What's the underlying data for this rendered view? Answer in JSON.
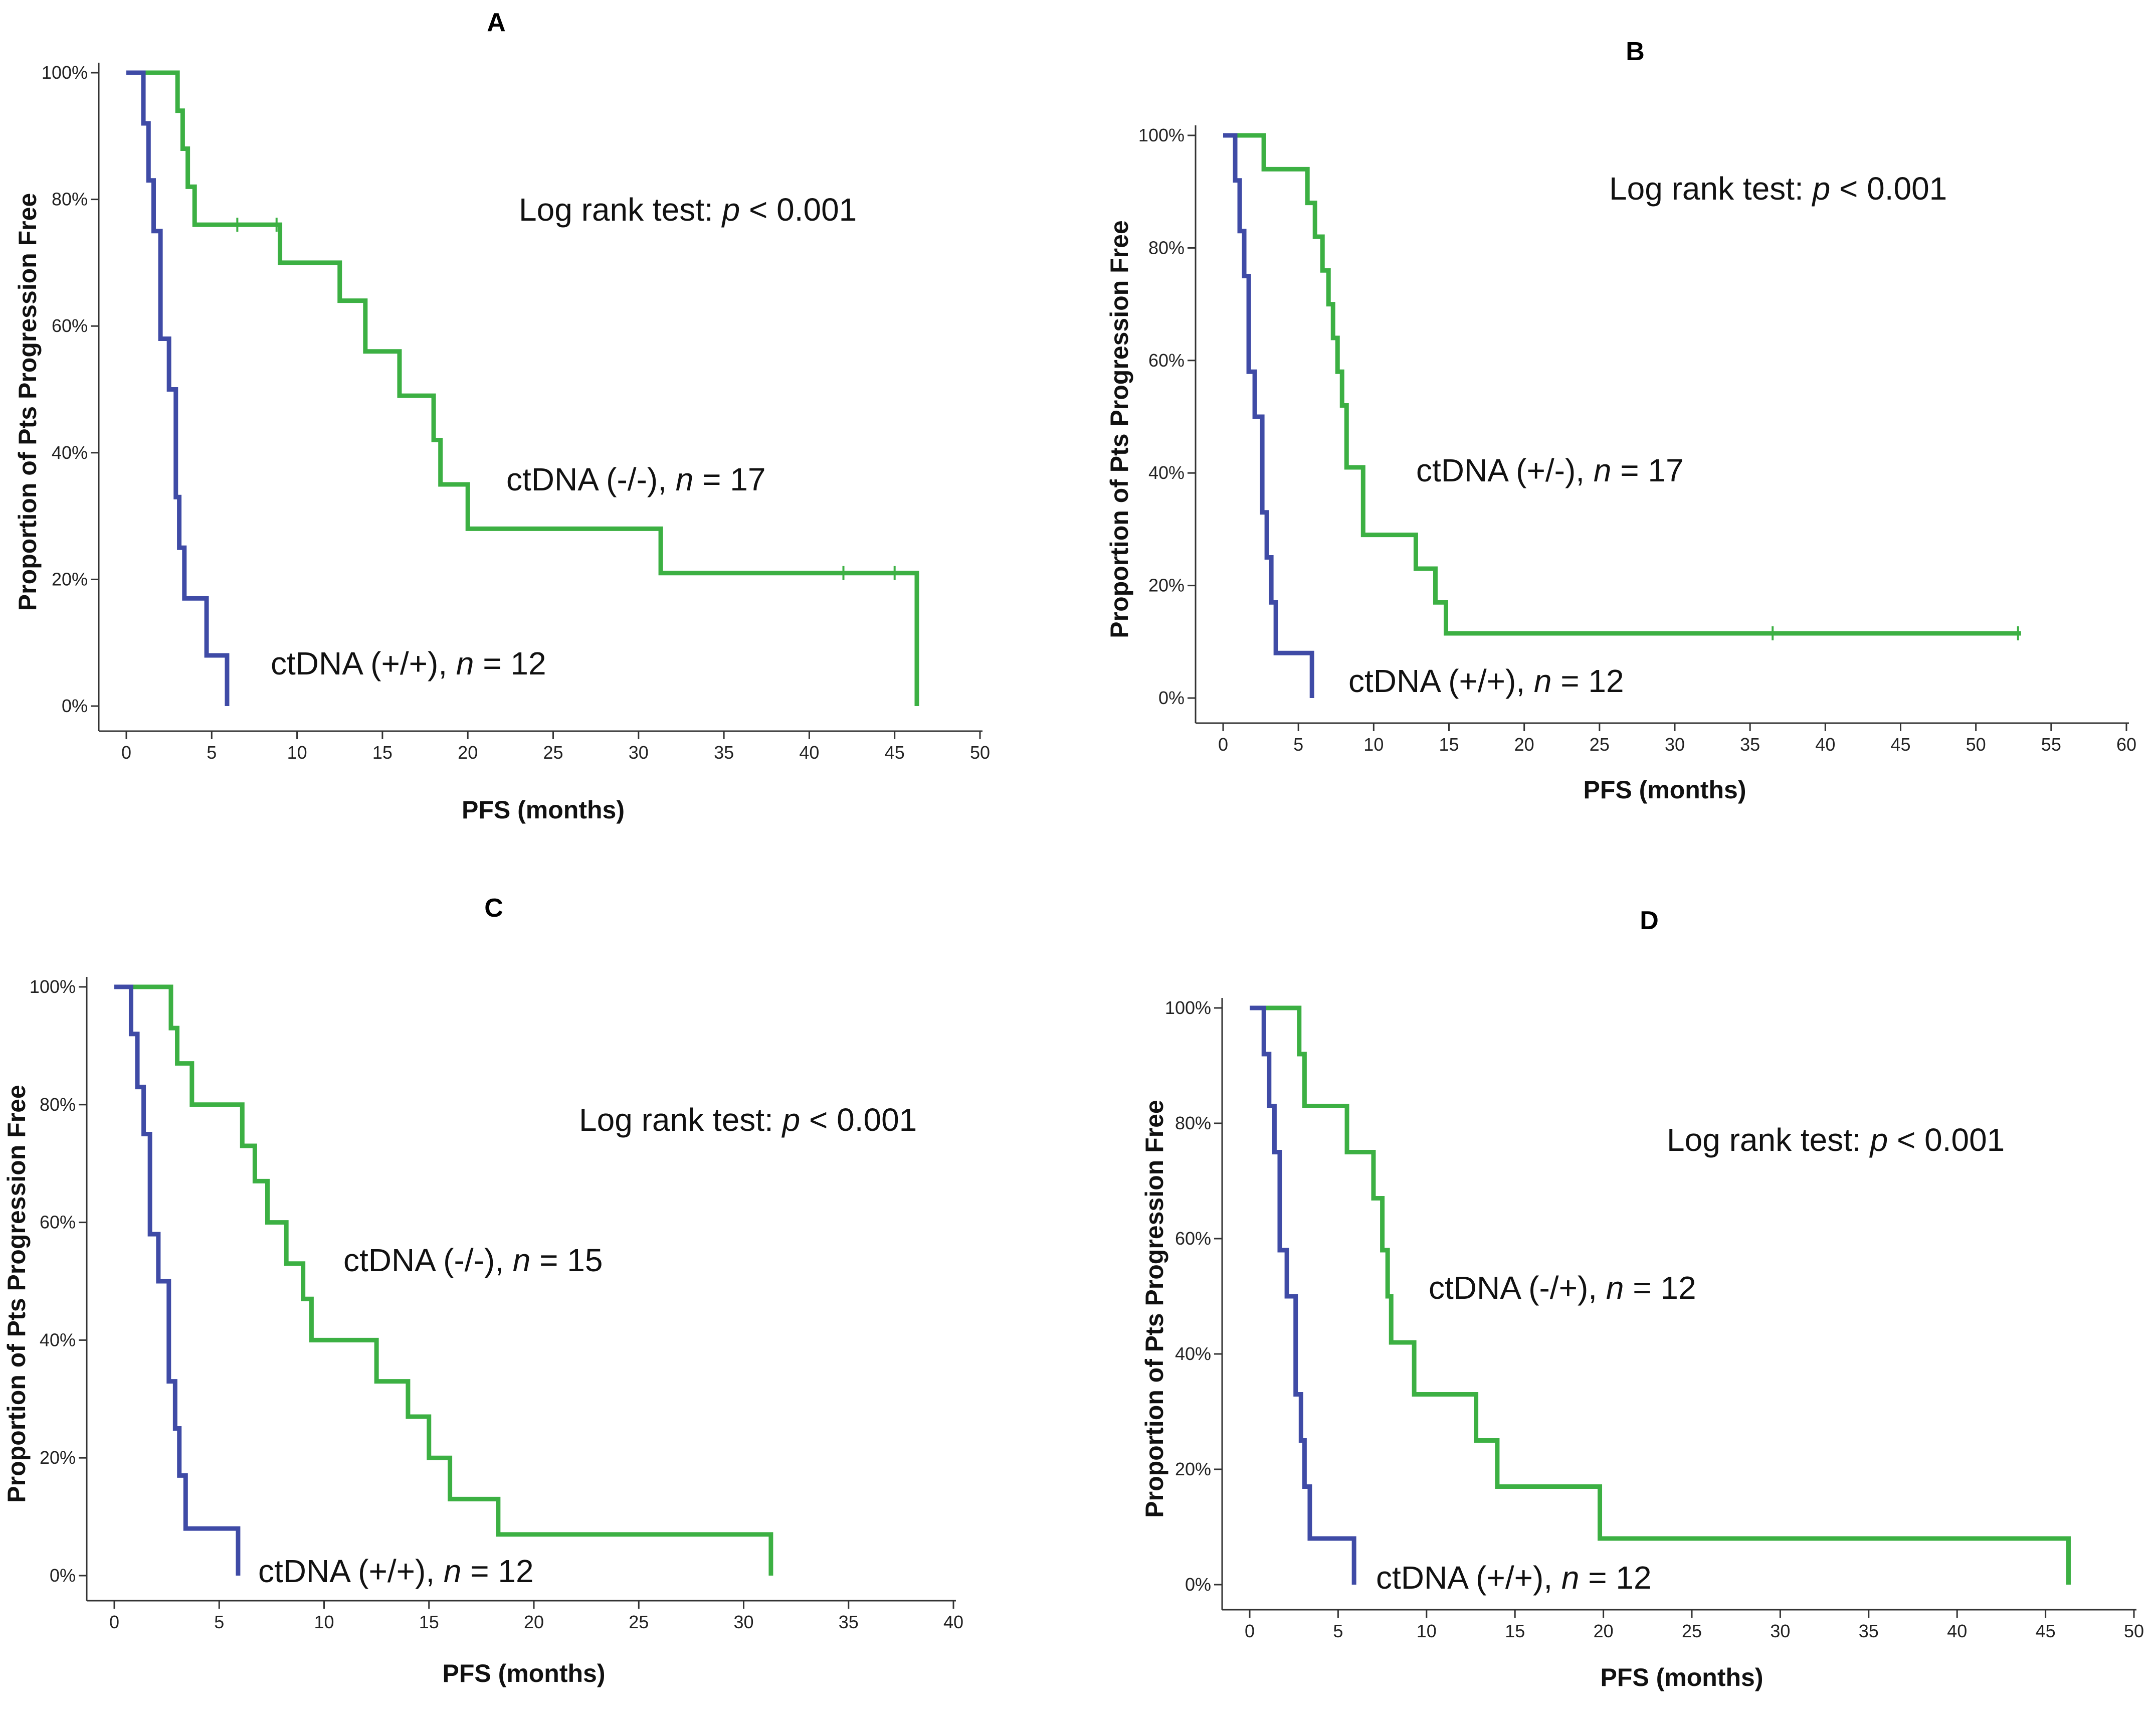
{
  "figure": {
    "description_free": true
  },
  "colors": {
    "green": "#3cb043",
    "blue": "#3f4ba6",
    "axis": "#333333"
  },
  "chart_data": [
    {
      "type": "line",
      "panel": "A",
      "title": "A",
      "xlabel": "PFS (months)",
      "ylabel": "Proportion of Pts Progression Free",
      "xlim": [
        0,
        50
      ],
      "ylim": [
        0,
        1
      ],
      "xticks": [
        0,
        5,
        10,
        15,
        20,
        25,
        30,
        35,
        40,
        45,
        50
      ],
      "yticks": [
        "0%",
        "20%",
        "40%",
        "60%",
        "80%",
        "100%"
      ],
      "annotation": "Log rank test: p < 0.001",
      "series": [
        {
          "name": "ctDNA (-/-), n = 17",
          "label_prefix": "ctDNA (-/-),  ",
          "label_n": "n",
          "label_suffix": " = 17",
          "color": "green",
          "x": [
            0,
            2.7,
            3.0,
            3.3,
            3.6,
            4.0,
            5.0,
            9.0,
            12.5,
            14.0,
            16.0,
            18.0,
            18.4,
            19.0,
            20.0,
            31.3,
            46.3,
            46.3
          ],
          "y": [
            1,
            1,
            0.94,
            0.88,
            0.82,
            0.76,
            0.76,
            0.7,
            0.64,
            0.56,
            0.49,
            0.42,
            0.35,
            0.35,
            0.28,
            0.21,
            0.21,
            0.0
          ],
          "censored": [
            [
              6.5,
              0.76
            ],
            [
              8.8,
              0.76
            ],
            [
              42.0,
              0.21
            ],
            [
              45.0,
              0.21
            ]
          ]
        },
        {
          "name": "ctDNA (+/+), n = 12",
          "label_prefix": "ctDNA (+/+),  ",
          "label_n": "n",
          "label_suffix": " = 12",
          "color": "blue",
          "x": [
            0,
            0.8,
            1.0,
            1.3,
            1.6,
            2.0,
            2.5,
            2.9,
            3.1,
            3.4,
            4.7,
            5.9,
            5.9
          ],
          "y": [
            1,
            1,
            0.92,
            0.83,
            0.75,
            0.58,
            0.5,
            0.33,
            0.25,
            0.17,
            0.08,
            0.08,
            0.0
          ],
          "censored": []
        }
      ]
    },
    {
      "type": "line",
      "panel": "B",
      "title": "B",
      "xlabel": "PFS (months)",
      "ylabel": "Proportion of Pts Progression Free",
      "xlim": [
        0,
        60
      ],
      "ylim": [
        0,
        1
      ],
      "xticks": [
        0,
        5,
        10,
        15,
        20,
        25,
        30,
        35,
        40,
        45,
        50,
        55,
        60
      ],
      "yticks": [
        "0%",
        "20%",
        "40%",
        "60%",
        "80%",
        "100%"
      ],
      "annotation": "Log rank test: p < 0.001",
      "series": [
        {
          "name": "ctDNA (+/-), n = 17",
          "label_prefix": "ctDNA (+/-),  ",
          "label_n": "n",
          "label_suffix": " = 17",
          "color": "green",
          "x": [
            0,
            2.7,
            5.6,
            6.1,
            6.6,
            7.0,
            7.3,
            7.6,
            7.9,
            8.2,
            9.3,
            12.8,
            14.1,
            14.8,
            53.0
          ],
          "y": [
            1,
            0.94,
            0.88,
            0.82,
            0.76,
            0.7,
            0.64,
            0.58,
            0.52,
            0.41,
            0.29,
            0.23,
            0.17,
            0.115,
            0.115
          ],
          "censored": [
            [
              36.5,
              0.115
            ],
            [
              52.8,
              0.115
            ]
          ]
        },
        {
          "name": "ctDNA (+/+), n = 12",
          "label_prefix": "ctDNA (+/+),  ",
          "label_n": "n",
          "label_suffix": " = 12",
          "color": "blue",
          "x": [
            0,
            0.8,
            1.1,
            1.4,
            1.7,
            2.1,
            2.6,
            2.9,
            3.2,
            3.5,
            4.7,
            5.9,
            5.9
          ],
          "y": [
            1,
            0.92,
            0.83,
            0.75,
            0.58,
            0.5,
            0.33,
            0.25,
            0.17,
            0.08,
            0.08,
            0.08,
            0.0
          ],
          "censored": []
        }
      ]
    },
    {
      "type": "line",
      "panel": "C",
      "title": "C",
      "xlabel": "PFS (months)",
      "ylabel": "Proportion of Pts Progression Free",
      "xlim": [
        0,
        40
      ],
      "ylim": [
        0,
        1
      ],
      "xticks": [
        0,
        5,
        10,
        15,
        20,
        25,
        30,
        35,
        40
      ],
      "yticks": [
        "0%",
        "20%",
        "40%",
        "60%",
        "80%",
        "100%"
      ],
      "annotation": "Log rank test: p < 0.001",
      "series": [
        {
          "name": "ctDNA (-/-), n = 15",
          "label_prefix": "ctDNA (-/-),  ",
          "label_n": "n",
          "label_suffix": " = 15",
          "color": "green",
          "x": [
            0,
            2.7,
            3.0,
            3.7,
            6.1,
            6.7,
            7.3,
            8.2,
            9.0,
            9.4,
            12.5,
            14.0,
            15.0,
            16.0,
            18.3,
            31.3,
            31.3
          ],
          "y": [
            1,
            0.93,
            0.87,
            0.8,
            0.73,
            0.67,
            0.6,
            0.53,
            0.47,
            0.4,
            0.33,
            0.27,
            0.2,
            0.13,
            0.07,
            0.07,
            0.0
          ],
          "censored": []
        },
        {
          "name": "ctDNA (+/+), n = 12",
          "label_prefix": "ctDNA (+/+),  ",
          "label_n": "n",
          "label_suffix": " = 12",
          "color": "blue",
          "x": [
            0,
            0.8,
            1.1,
            1.4,
            1.7,
            2.1,
            2.6,
            2.9,
            3.1,
            3.4,
            5.9,
            5.9
          ],
          "y": [
            1,
            0.92,
            0.83,
            0.75,
            0.58,
            0.5,
            0.33,
            0.25,
            0.17,
            0.08,
            0.08,
            0.0
          ],
          "censored": []
        }
      ]
    },
    {
      "type": "line",
      "panel": "D",
      "title": "D",
      "xlabel": "PFS (months)",
      "ylabel": "Proportion of Pts Progression Free",
      "xlim": [
        0,
        50
      ],
      "ylim": [
        0,
        1
      ],
      "xticks": [
        0,
        5,
        10,
        15,
        20,
        25,
        30,
        35,
        40,
        45,
        50
      ],
      "yticks": [
        "0%",
        "20%",
        "40%",
        "60%",
        "80%",
        "100%"
      ],
      "annotation": "Log rank test: p < 0.001",
      "series": [
        {
          "name": "ctDNA (-/+), n = 12",
          "label_prefix": "ctDNA (-/+),  ",
          "label_n": "n",
          "label_suffix": " = 12",
          "color": "green",
          "x": [
            0,
            2.8,
            3.1,
            5.5,
            7.0,
            7.5,
            7.8,
            8.0,
            9.3,
            12.8,
            14.0,
            19.8,
            46.3,
            46.3
          ],
          "y": [
            1,
            0.92,
            0.83,
            0.75,
            0.67,
            0.58,
            0.5,
            0.42,
            0.33,
            0.25,
            0.17,
            0.08,
            0.08,
            0.0
          ],
          "censored": []
        },
        {
          "name": "ctDNA (+/+), n = 12",
          "label_prefix": "ctDNA (+/+),  ",
          "label_n": "n",
          "label_suffix": " = 12",
          "color": "blue",
          "x": [
            0,
            0.8,
            1.1,
            1.4,
            1.7,
            2.1,
            2.6,
            2.9,
            3.1,
            3.4,
            5.9,
            5.9
          ],
          "y": [
            1,
            0.92,
            0.83,
            0.75,
            0.58,
            0.5,
            0.33,
            0.25,
            0.17,
            0.08,
            0.08,
            0.0
          ],
          "censored": []
        }
      ]
    }
  ]
}
